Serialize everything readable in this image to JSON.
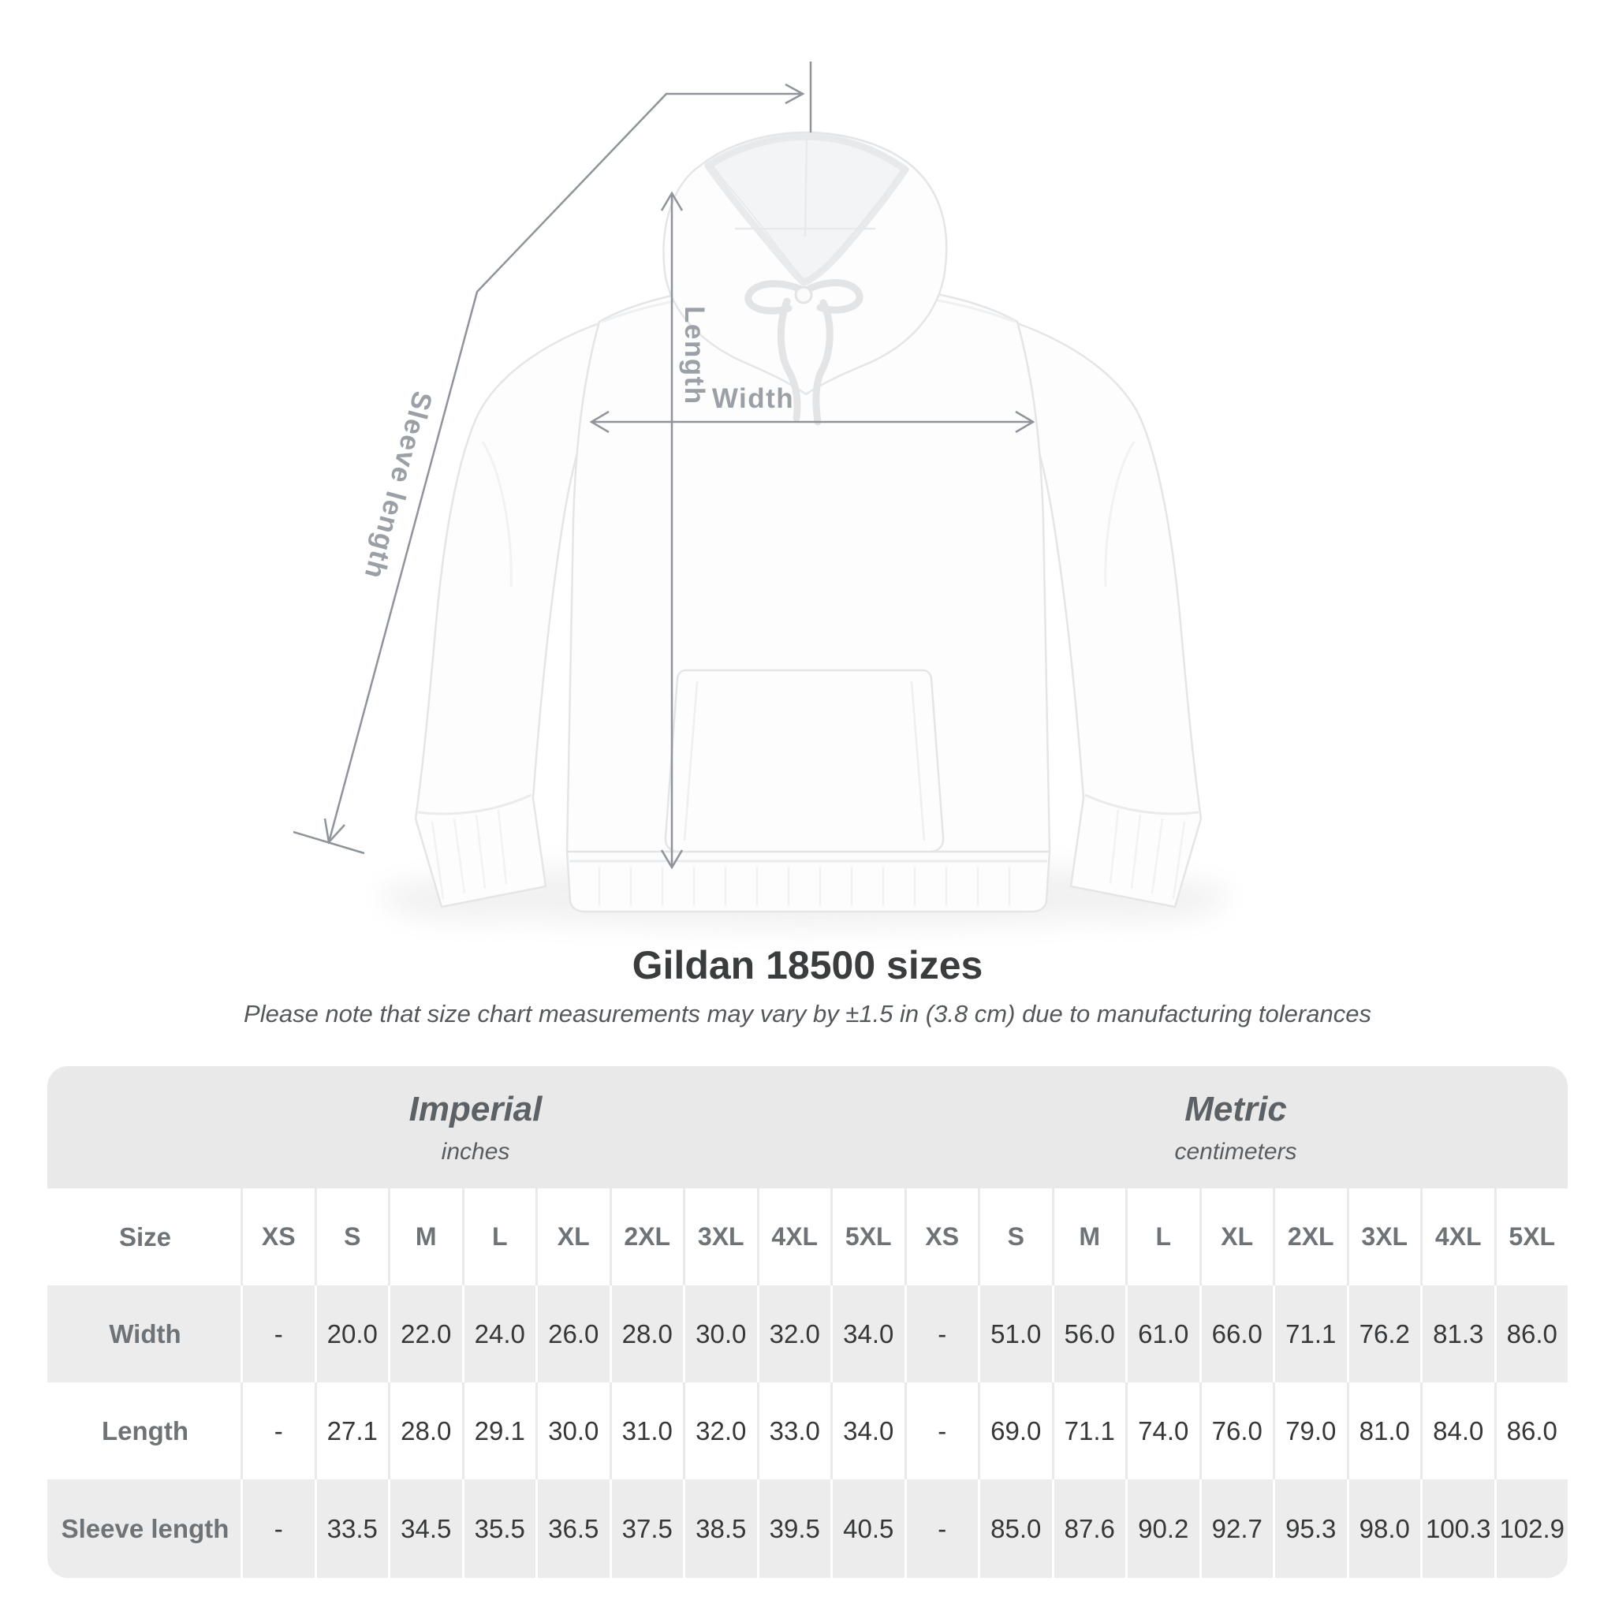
{
  "diagram": {
    "labels": {
      "length": "Length",
      "width": "Width",
      "sleeve": "Sleeve length"
    }
  },
  "header": {
    "title": "Gildan 18500 sizes",
    "subtitle": "Please note that size chart measurements may vary by ±1.5 in (3.8 cm) due to manufacturing tolerances"
  },
  "table": {
    "unit_groups": [
      {
        "label": "Imperial",
        "sublabel": "inches"
      },
      {
        "label": "Metric",
        "sublabel": "centimeters"
      }
    ],
    "size_header": "Size",
    "sizes": [
      "XS",
      "S",
      "M",
      "L",
      "XL",
      "2XL",
      "3XL",
      "4XL",
      "5XL"
    ],
    "rows": [
      {
        "label": "Width",
        "imperial": [
          "-",
          "20.0",
          "22.0",
          "24.0",
          "26.0",
          "28.0",
          "30.0",
          "32.0",
          "34.0"
        ],
        "metric": [
          "-",
          "51.0",
          "56.0",
          "61.0",
          "66.0",
          "71.1",
          "76.2",
          "81.3",
          "86.0"
        ]
      },
      {
        "label": "Length",
        "imperial": [
          "-",
          "27.1",
          "28.0",
          "29.1",
          "30.0",
          "31.0",
          "32.0",
          "33.0",
          "34.0"
        ],
        "metric": [
          "-",
          "69.0",
          "71.1",
          "74.0",
          "76.0",
          "79.0",
          "81.0",
          "84.0",
          "86.0"
        ]
      },
      {
        "label": "Sleeve length",
        "imperial": [
          "-",
          "33.5",
          "34.5",
          "35.5",
          "36.5",
          "37.5",
          "38.5",
          "39.5",
          "40.5"
        ],
        "metric": [
          "-",
          "85.0",
          "87.6",
          "90.2",
          "92.7",
          "95.3",
          "98.0",
          "100.3",
          "102.9"
        ]
      }
    ]
  },
  "chart_data": {
    "type": "table",
    "title": "Gildan 18500 sizes",
    "columns": [
      "XS",
      "S",
      "M",
      "L",
      "XL",
      "2XL",
      "3XL",
      "4XL",
      "5XL"
    ],
    "series": [
      {
        "name": "Width (in)",
        "values": [
          null,
          20.0,
          22.0,
          24.0,
          26.0,
          28.0,
          30.0,
          32.0,
          34.0
        ]
      },
      {
        "name": "Length (in)",
        "values": [
          null,
          27.1,
          28.0,
          29.1,
          30.0,
          31.0,
          32.0,
          33.0,
          34.0
        ]
      },
      {
        "name": "Sleeve length (in)",
        "values": [
          null,
          33.5,
          34.5,
          35.5,
          36.5,
          37.5,
          38.5,
          39.5,
          40.5
        ]
      },
      {
        "name": "Width (cm)",
        "values": [
          null,
          51.0,
          56.0,
          61.0,
          66.0,
          71.1,
          76.2,
          81.3,
          86.0
        ]
      },
      {
        "name": "Length (cm)",
        "values": [
          null,
          69.0,
          71.1,
          74.0,
          76.0,
          79.0,
          81.0,
          84.0,
          86.0
        ]
      },
      {
        "name": "Sleeve length (cm)",
        "values": [
          null,
          85.0,
          87.6,
          90.2,
          92.7,
          95.3,
          98.0,
          100.3,
          102.9
        ]
      }
    ]
  },
  "colors": {
    "table_band": "#e9e9e9",
    "row_alt": "#ececec",
    "text_dark": "#353739",
    "text_gray": "#6e7377",
    "annotation_gray": "#8e949a",
    "label_gray": "#9aa0a5"
  }
}
